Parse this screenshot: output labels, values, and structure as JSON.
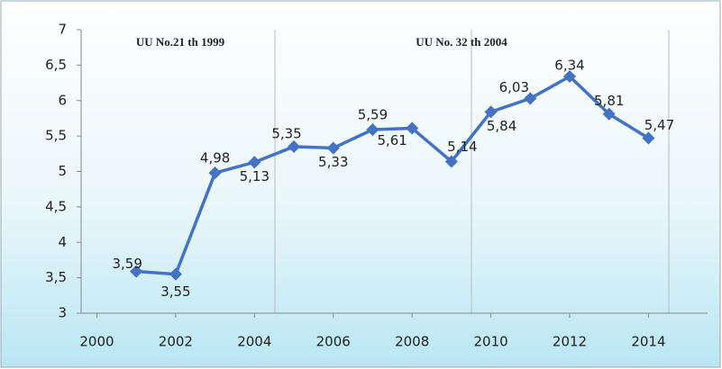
{
  "chart_data": {
    "type": "line",
    "annotations": [
      "UU No.21 th 1999",
      "UU No. 32 th 2004"
    ],
    "x": [
      2001,
      2002,
      2003,
      2004,
      2005,
      2006,
      2007,
      2008,
      2009,
      2010,
      2011,
      2012,
      2013,
      2014
    ],
    "series": [
      {
        "color": "#4472c4",
        "values": [
          3.59,
          3.55,
          4.98,
          5.13,
          5.35,
          5.33,
          5.59,
          5.61,
          5.14,
          5.84,
          6.03,
          6.34,
          5.81,
          5.47
        ],
        "value_labels": [
          "3,59",
          "3,55",
          "4,98",
          "5,13",
          "5,35",
          "5,33",
          "5,59",
          "5,61",
          "5,14",
          "5,84",
          "6,03",
          "6,34",
          "5,81",
          "5,47"
        ]
      }
    ],
    "xlim": [
      1999.6,
      2015.5
    ],
    "xticks": [
      2000,
      2002,
      2004,
      2006,
      2008,
      2010,
      2012,
      2014
    ],
    "ylim": [
      3,
      7
    ],
    "yticks": [
      3,
      {
        "value": 3.5,
        "label": "3,5"
      },
      4,
      {
        "value": 4.5,
        "label": "4,5"
      },
      5,
      {
        "value": 5.5,
        "label": "5,5"
      },
      6,
      {
        "value": 6.5,
        "label": "6,5"
      },
      7
    ]
  }
}
